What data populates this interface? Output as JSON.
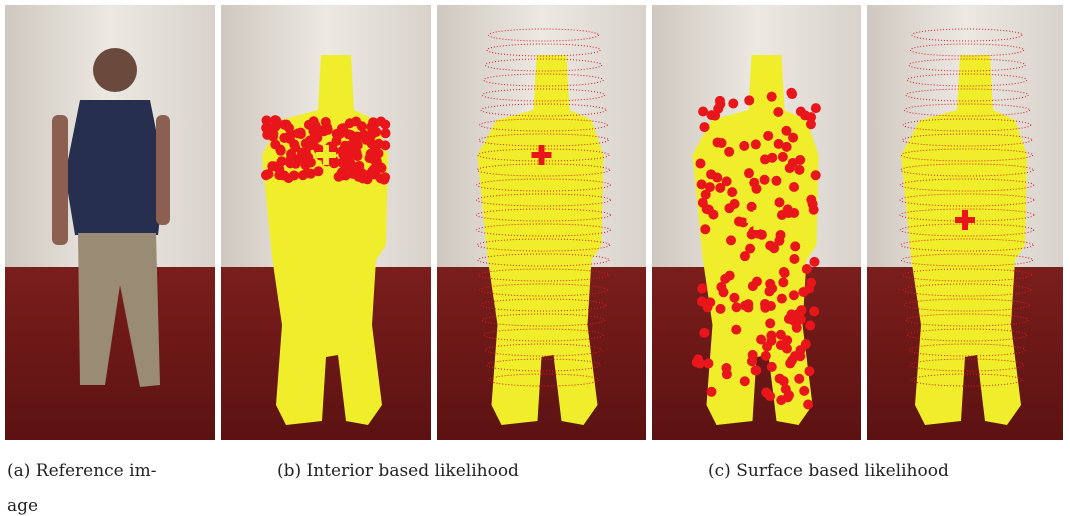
{
  "figure": {
    "subfigures": [
      {
        "caption_lines": [
          "(a) Reference im-",
          "age"
        ]
      },
      {
        "caption_lines": [
          "(b) Interior based likelihood"
        ]
      },
      {
        "caption_lines": [
          "(c) Surface based likelihood"
        ]
      }
    ]
  }
}
